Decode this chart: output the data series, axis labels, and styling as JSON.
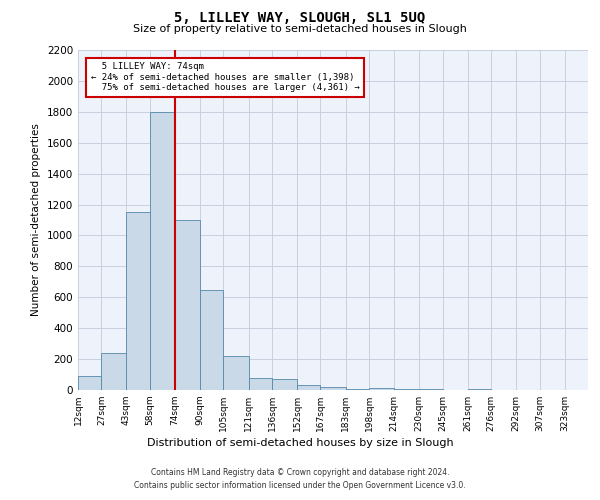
{
  "title": "5, LILLEY WAY, SLOUGH, SL1 5UQ",
  "subtitle": "Size of property relative to semi-detached houses in Slough",
  "xlabel": "Distribution of semi-detached houses by size in Slough",
  "ylabel": "Number of semi-detached properties",
  "property_label": "5 LILLEY WAY: 74sqm",
  "pct_smaller": "24% of semi-detached houses are smaller (1,398)",
  "pct_larger": "75% of semi-detached houses are larger (4,361)",
  "property_line_x": 74,
  "categories": [
    "12sqm",
    "27sqm",
    "43sqm",
    "58sqm",
    "74sqm",
    "90sqm",
    "105sqm",
    "121sqm",
    "136sqm",
    "152sqm",
    "167sqm",
    "183sqm",
    "198sqm",
    "214sqm",
    "230sqm",
    "245sqm",
    "261sqm",
    "276sqm",
    "292sqm",
    "307sqm",
    "323sqm"
  ],
  "bin_edges": [
    12,
    27,
    43,
    58,
    74,
    90,
    105,
    121,
    136,
    152,
    167,
    183,
    198,
    214,
    230,
    245,
    261,
    276,
    292,
    307,
    323
  ],
  "bar_heights": [
    90,
    240,
    1150,
    1800,
    1100,
    650,
    220,
    80,
    70,
    30,
    20,
    5,
    10,
    5,
    5,
    0,
    5,
    0,
    0,
    0
  ],
  "bar_color": "#c9d9e8",
  "bar_edge_color": "#5588aa",
  "red_line_color": "#cc0000",
  "annotation_box_edge": "#cc0000",
  "grid_color": "#c8d0e0",
  "background_color": "#eef2fa",
  "ylim": [
    0,
    2200
  ],
  "yticks": [
    0,
    200,
    400,
    600,
    800,
    1000,
    1200,
    1400,
    1600,
    1800,
    2000,
    2200
  ],
  "footer_line1": "Contains HM Land Registry data © Crown copyright and database right 2024.",
  "footer_line2": "Contains public sector information licensed under the Open Government Licence v3.0."
}
